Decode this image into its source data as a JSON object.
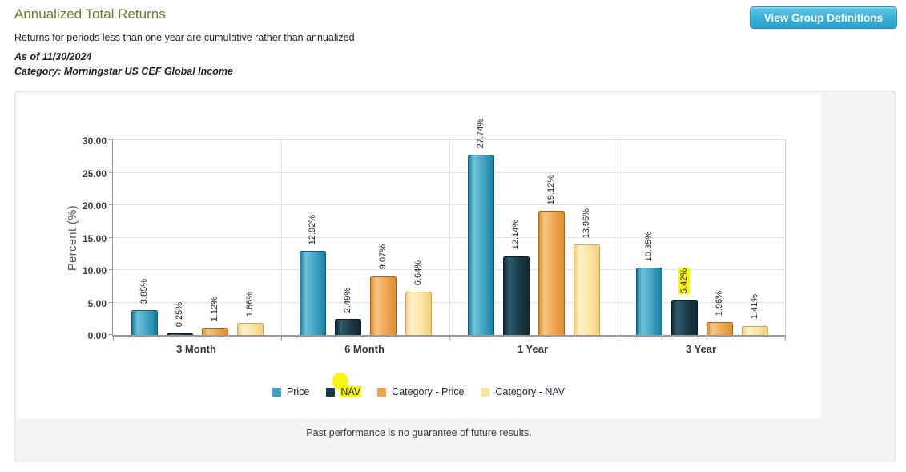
{
  "header": {
    "title": "Annualized Total Returns",
    "subtitle": "Returns for periods less than one year are cumulative rather than annualized",
    "as_of": "As of 11/30/2024",
    "category_line": "Category: Morningstar US CEF Global Income",
    "button_label": "View Group Definitions"
  },
  "chart_data": {
    "type": "bar",
    "title": "Annualized Total Returns",
    "ylabel": "Percent (%)",
    "xlabel": "",
    "ylim": [
      0,
      30
    ],
    "yticks": [
      0,
      5,
      10,
      15,
      20,
      25,
      30
    ],
    "ytick_labels": [
      "0.00",
      "5.00",
      "10.00",
      "15.00",
      "20.00",
      "25.00",
      "30.00"
    ],
    "grid": true,
    "legend_position": "bottom",
    "categories": [
      "3 Month",
      "6 Month",
      "1 Year",
      "3 Year"
    ],
    "series": [
      {
        "name": "Price",
        "values": [
          3.85,
          12.92,
          27.74,
          10.35
        ],
        "labels": [
          "3.85%",
          "12.92%",
          "27.74%",
          "10.35%"
        ],
        "color": "#3fa2c2",
        "color_light": "#6fc3d8",
        "color_dark": "#1f7ea0",
        "border": "#14566e"
      },
      {
        "name": "NAV",
        "values": [
          0.25,
          2.49,
          12.14,
          5.42
        ],
        "labels": [
          "0.25%",
          "2.49%",
          "12.14%",
          "5.42%"
        ],
        "color": "#1a3b48",
        "color_light": "#2e5d6e",
        "color_dark": "#102a34",
        "border": "#0a1e26"
      },
      {
        "name": "Category - Price",
        "values": [
          1.12,
          9.07,
          19.12,
          1.96
        ],
        "labels": [
          "1.12%",
          "9.07%",
          "19.12%",
          "1.96%"
        ],
        "color": "#efa44f",
        "color_light": "#f6c582",
        "color_dark": "#dd8f33",
        "border": "#a06522"
      },
      {
        "name": "Category - NAV",
        "values": [
          1.86,
          6.64,
          13.96,
          1.41
        ],
        "labels": [
          "1.86%",
          "6.64%",
          "13.96%",
          "1.41%"
        ],
        "color": "#fbe3a2",
        "color_light": "#fdf1cb",
        "color_dark": "#f4d07f",
        "border": "#c9a35c"
      }
    ],
    "highlight_color": "#f8f713",
    "legend_highlight": "NAV",
    "bar_label_highlight": {
      "series_index": 1,
      "category_index": 3
    }
  },
  "footer": {
    "disclaimer": "Past performance is no guarantee of future results."
  }
}
